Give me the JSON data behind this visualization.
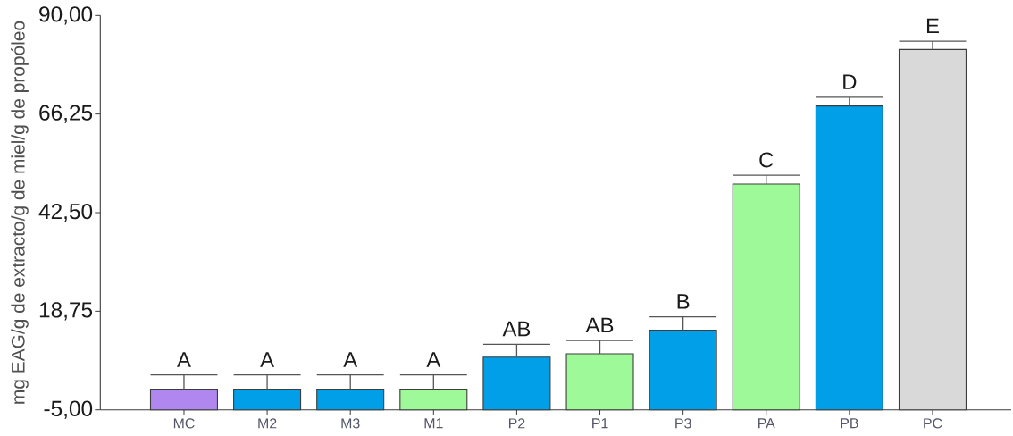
{
  "chart_data": {
    "type": "bar",
    "ylabel": "mg EAG/g de extracto/g de miel/g de propóleo",
    "categories": [
      "MC",
      "M2",
      "M3",
      "M1",
      "P2",
      "P1",
      "P3",
      "PA",
      "PB",
      "PC"
    ],
    "base": [
      -5,
      -5,
      -5,
      -5,
      -5,
      -5,
      -5,
      -5,
      -5,
      -5
    ],
    "values": [
      5.0,
      5.0,
      5.0,
      5.0,
      12.7,
      13.5,
      19.2,
      54.4,
      73.2,
      86.8
    ],
    "errors": [
      [
        0,
        3.4
      ],
      [
        0,
        3.4
      ],
      [
        0,
        3.4
      ],
      [
        0,
        3.4
      ],
      [
        7.7,
        10.8
      ],
      [
        8.5,
        11.7
      ],
      [
        14.2,
        17.4
      ],
      [
        49.4,
        51.5
      ],
      [
        68.2,
        70.3
      ],
      [
        81.8,
        83.8
      ]
    ],
    "colors": [
      "#af87ef",
      "#009fe8",
      "#009fe8",
      "#9efa98",
      "#009fe8",
      "#9efa98",
      "#009fe8",
      "#9efa98",
      "#009fe8",
      "#d9d9d9"
    ],
    "ylim": [
      -5,
      90
    ],
    "yticks": [
      {
        "value": -5,
        "label": "-5,00"
      },
      {
        "value": 18.75,
        "label": "18,75"
      },
      {
        "value": 42.5,
        "label": "42,50"
      },
      {
        "value": 66.25,
        "label": "66,25"
      },
      {
        "value": 90,
        "label": "90,00"
      }
    ],
    "annotations": [
      "A",
      "A",
      "A",
      "A",
      "AB",
      "AB",
      "B",
      "C",
      "D",
      "E"
    ]
  }
}
